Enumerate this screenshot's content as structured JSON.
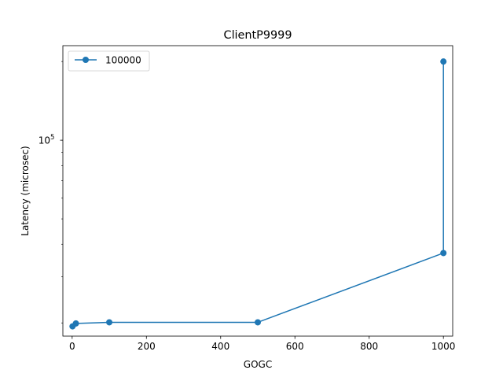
{
  "chart_data": {
    "type": "line",
    "title": "ClientP9999",
    "xlabel": "GOGC",
    "ylabel": "Latency (microsec)",
    "xlim": [
      -25,
      1025
    ],
    "ylim": [
      17800,
      230000
    ],
    "y_scale": "log",
    "grid": false,
    "legend_position": "upper-left",
    "x_ticks": [
      0,
      200,
      400,
      600,
      800,
      1000
    ],
    "x_tick_labels": [
      "0",
      "200",
      "400",
      "600",
      "800",
      "1000"
    ],
    "y_ticks": [
      100000
    ],
    "y_tick_labels": [
      {
        "base": "10",
        "exp": "5"
      }
    ],
    "series": [
      {
        "name": "100000",
        "color": "#1f77b4",
        "x": [
          1,
          10,
          100,
          500,
          1000,
          1000
        ],
        "y": [
          19400,
          19900,
          20100,
          20100,
          37000,
          200000
        ]
      }
    ]
  }
}
